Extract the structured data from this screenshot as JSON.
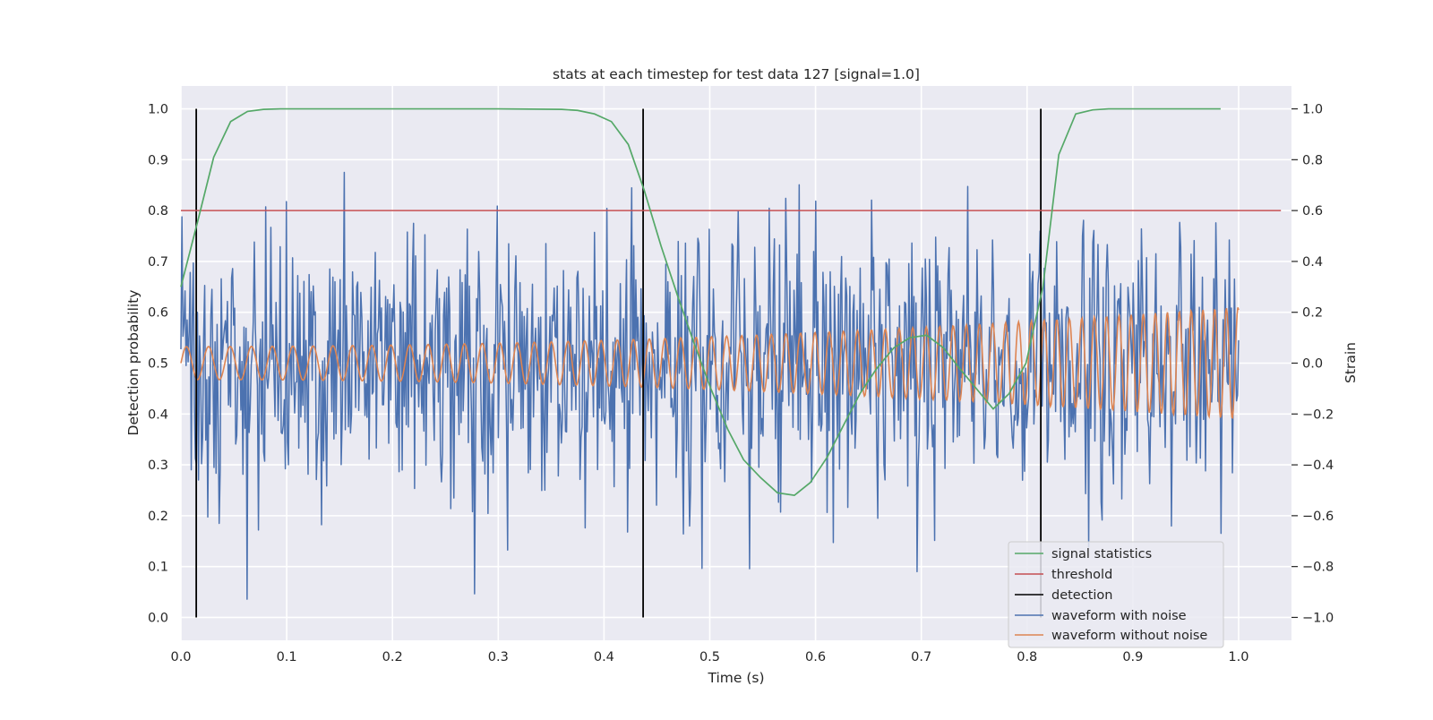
{
  "chart_data": {
    "type": "line",
    "title": "stats at each timestep for test data 127 [signal=1.0]",
    "xlabel": "Time (s)",
    "ylabel": "Detection probability",
    "ylabel_right": "Strain",
    "xlim": [
      0.0,
      1.05
    ],
    "ylim": [
      -0.045,
      1.045
    ],
    "ylim_right": [
      -1.09,
      1.09
    ],
    "grid": true,
    "legend_position": "lower-right",
    "xticks": [
      0.0,
      0.1,
      0.2,
      0.3,
      0.4,
      0.5,
      0.6,
      0.7,
      0.8,
      0.9,
      1.0
    ],
    "xtick_labels": [
      "0.0",
      "0.1",
      "0.2",
      "0.3",
      "0.4",
      "0.5",
      "0.6",
      "0.7",
      "0.8",
      "0.9",
      "1.0"
    ],
    "yticks": [
      0.0,
      0.1,
      0.2,
      0.3,
      0.4,
      0.5,
      0.6,
      0.7,
      0.8,
      0.9,
      1.0
    ],
    "ytick_labels": [
      "0.0",
      "0.1",
      "0.2",
      "0.3",
      "0.4",
      "0.5",
      "0.6",
      "0.7",
      "0.8",
      "0.9",
      "1.0"
    ],
    "yticks_right": [
      -1.0,
      -0.8,
      -0.6,
      -0.4,
      -0.2,
      0.0,
      0.2,
      0.4,
      0.6,
      0.8,
      1.0
    ],
    "ytick_labels_right": [
      "−1.0",
      "−0.8",
      "−0.6",
      "−0.4",
      "−0.2",
      "0.0",
      "0.2",
      "0.4",
      "0.6",
      "0.8",
      "1.0"
    ],
    "series": [
      {
        "name": "signal statistics",
        "axis": "left",
        "color": "#55a868",
        "x": [
          0.0,
          0.016,
          0.031,
          0.047,
          0.063,
          0.078,
          0.094,
          0.11,
          0.2,
          0.3,
          0.36,
          0.375,
          0.391,
          0.407,
          0.423,
          0.438,
          0.454,
          0.47,
          0.485,
          0.501,
          0.517,
          0.532,
          0.548,
          0.564,
          0.58,
          0.595,
          0.611,
          0.627,
          0.642,
          0.658,
          0.674,
          0.689,
          0.705,
          0.721,
          0.736,
          0.752,
          0.768,
          0.783,
          0.799,
          0.815,
          0.83,
          0.846,
          0.862,
          0.877,
          0.9,
          0.95,
          0.983
        ],
        "values": [
          0.65,
          0.78,
          0.905,
          0.975,
          0.995,
          0.999,
          1.0,
          1.0,
          1.0,
          1.0,
          0.999,
          0.997,
          0.99,
          0.975,
          0.93,
          0.84,
          0.73,
          0.63,
          0.54,
          0.45,
          0.37,
          0.31,
          0.275,
          0.245,
          0.24,
          0.265,
          0.315,
          0.38,
          0.44,
          0.49,
          0.53,
          0.55,
          0.555,
          0.53,
          0.49,
          0.45,
          0.41,
          0.44,
          0.5,
          0.65,
          0.91,
          0.99,
          0.998,
          1.0,
          1.0,
          1.0,
          1.0
        ]
      },
      {
        "name": "threshold",
        "axis": "left",
        "color": "#c44e52",
        "x": [
          0.0,
          1.04
        ],
        "values": [
          0.8,
          0.8
        ]
      },
      {
        "name": "detection",
        "axis": "left",
        "color": "#000000",
        "vlines": [
          0.0145,
          0.437,
          0.813
        ],
        "ymin": 0.0,
        "ymax": 1.0
      },
      {
        "name": "waveform with noise",
        "axis": "right",
        "color": "#4c72b0",
        "description_range": [
          -1.0,
          1.0
        ],
        "x_start": 0.0,
        "x_end": 1.0,
        "samples": 1024
      },
      {
        "name": "waveform without noise",
        "axis": "right",
        "color": "#dd8452",
        "x_start": 0.0,
        "x_end": 1.0,
        "amplitude_start": 0.065,
        "amplitude_end": 0.22,
        "cycles": 63
      }
    ]
  }
}
